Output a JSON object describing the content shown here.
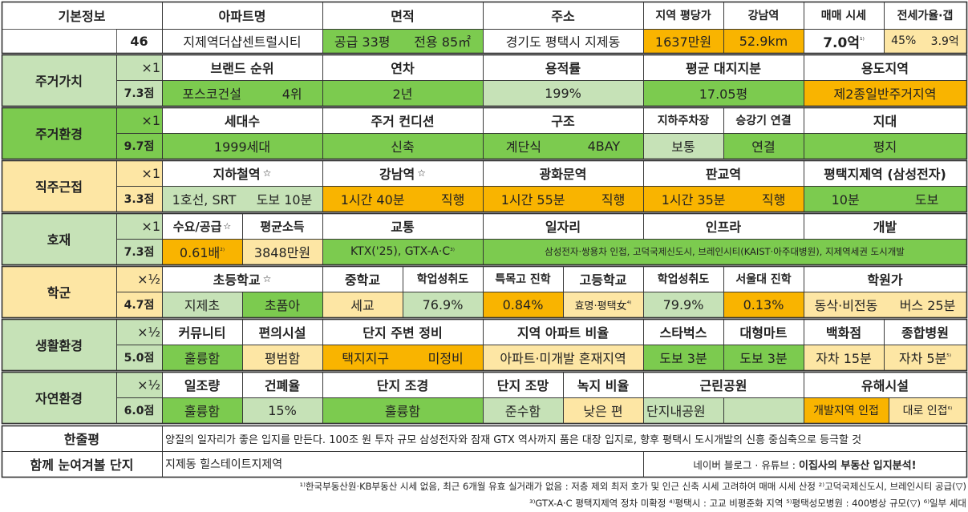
{
  "basic": {
    "label": "기본정보",
    "number": "46",
    "headers": {
      "apt": "아파트명",
      "area": "면적",
      "addr": "주소",
      "price_pp": "지역 평당가",
      "gangnam": "강남역",
      "sale": "매매 시세",
      "jeonse": "전세가율·갭"
    },
    "values": {
      "apt": "지제역더샵센트럴시티",
      "area_a": "공급 33평",
      "area_b": "전용 85㎡",
      "addr": "경기도 평택시 지제동",
      "price_pp": "1637만원",
      "gangnam": "52.9km",
      "sale": "7.0억",
      "sale_sup": "¹⁾",
      "jeonse_a": "45%",
      "jeonse_b": "3.9억"
    }
  },
  "rows": {
    "r1": {
      "label": "주거가치",
      "mult": "×1",
      "score": "7.3점",
      "h": {
        "brand": "브랜드 순위",
        "age": "연차",
        "far": "용적률",
        "land": "평균 대지지분",
        "zone": "용도지역"
      },
      "v": {
        "brand_a": "포스코건설",
        "brand_b": "4위",
        "age": "2년",
        "far": "199%",
        "land": "17.05평",
        "zone": "제2종일반주거지역"
      }
    },
    "r2": {
      "label": "주거환경",
      "mult": "×1",
      "score": "9.7점",
      "h": {
        "units": "세대수",
        "cond": "주거 컨디션",
        "struct": "구조",
        "park": "지하주차장",
        "elev": "승강기 연결",
        "terrain": "지대"
      },
      "v": {
        "units": "1999세대",
        "cond": "신축",
        "struct_a": "계단식",
        "struct_b": "4BAY",
        "park": "보통",
        "elev": "연결",
        "terrain": "평지"
      }
    },
    "r3": {
      "label": "직주근접",
      "mult": "×1",
      "score": "3.3점",
      "h": {
        "subway": "지하철역",
        "star": "☆",
        "gn": "강남역",
        "gh": "광화문역",
        "pg": "판교역",
        "pt": "평택지제역 (삼성전자)"
      },
      "v": {
        "sub_a": "1호선, SRT",
        "sub_b": "도보 10분",
        "gn_a": "1시간 40분",
        "gn_b": "직행",
        "gh_a": "1시간 55분",
        "gh_b": "직행",
        "pg_a": "1시간 35분",
        "pg_b": "직행",
        "pt_a": "10분",
        "pt_b": "도보"
      }
    },
    "r4": {
      "label": "호재",
      "mult": "×1",
      "score": "7.3점",
      "h": {
        "supply": "수요/공급",
        "income": "평균소득",
        "traffic": "교통",
        "jobs": "일자리",
        "infra": "인프라",
        "dev": "개발"
      },
      "v": {
        "supply": "0.61배",
        "supply_sup": "²⁾",
        "income": "3848만원",
        "traffic": "KTX('25), GTX-A·C",
        "traffic_sup": "³⁾",
        "rest": "삼성전자·쌍용차 인접, 고덕국제신도시, 브레인시티(KAIST·아주대병원), 지제역세권 도시개발"
      }
    },
    "r5": {
      "label": "학군",
      "mult": "×½",
      "score": "4.7점",
      "h": {
        "elem": "초등학교",
        "mid": "중학교",
        "mid_ach": "학업성취도",
        "special": "특목고 진학",
        "high": "고등학교",
        "high_ach": "학업성취도",
        "snu": "서울대 진학",
        "academy": "학원가"
      },
      "v": {
        "elem_a": "지제초",
        "elem_b": "초품아",
        "mid": "세교",
        "mid_ach": "76.9%",
        "special": "0.84%",
        "high": "효명·평택女",
        "high_sup": "⁴⁾",
        "high_ach": "79.9%",
        "snu": "0.13%",
        "ac_a": "동삭·비전동",
        "ac_b": "버스 25분"
      }
    },
    "r6": {
      "label": "생활환경",
      "mult": "×½",
      "score": "5.0점",
      "h": {
        "comm": "커뮤니티",
        "conv": "편의시설",
        "surround": "단지 주변 정비",
        "ratio": "지역 아파트 비율",
        "starbucks": "스타벅스",
        "mart": "대형마트",
        "dept": "백화점",
        "hosp": "종합병원"
      },
      "v": {
        "comm": "훌륭함",
        "conv": "평범함",
        "sur_a": "택지지구",
        "sur_b": "미정비",
        "ratio": "아파트·미개발 혼재지역",
        "starbucks": "도보 3분",
        "mart": "도보 3분",
        "dept": "자차 15분",
        "hosp": "자차 5분",
        "hosp_sup": "⁵⁾"
      }
    },
    "r7": {
      "label": "자연환경",
      "mult": "×½",
      "score": "6.0점",
      "h": {
        "sun": "일조량",
        "bcr": "건폐율",
        "land": "단지 조경",
        "view": "단지 조망",
        "green": "녹지 비율",
        "park": "근린공원",
        "harm": "유해시설"
      },
      "v": {
        "sun": "훌륭함",
        "bcr": "15%",
        "land": "훌륭함",
        "view": "준수함",
        "green": "낮은 편",
        "park": "단지내공원",
        "harm_a": "개발지역 인접",
        "harm_b": "대로 인접",
        "harm_sup": "⁶⁾"
      }
    }
  },
  "summary": {
    "label": "한줄평",
    "text": "양질의 일자리가 좋은 입지를 만든다. 100조 원 투자 규모 삼성전자와 잠재 GTX 역사까지 품은 대장 입지로, 향후 평택시 도시개발의 신흥 중심축으로 등극할 것"
  },
  "compare": {
    "label": "함께 눈여겨볼 단지",
    "text": "지제동 힐스테이트지제역",
    "credit_a": "네이버 블로그 · 유튜브 :",
    "credit_b": "이집사의 부동산 입지분석!"
  },
  "footnotes": {
    "line1": "¹⁾한국부동산원·KB부동산 시세 없음, 최근 6개월 유효 실거래가 없음 : 저층 제외 최저 호가 및 인근 신축 시세 고려하여 매매 시세 산정 ²⁾고덕국제신도시, 브레인시티 공급(▽)",
    "line2": "³⁾GTX-A·C 평택지제역 정차 미확정 ⁴⁾평택시 : 고교 비평준화 지역 ⁵⁾평택성모병원 : 400병상 규모(▽) ⁶⁾일부 세대"
  },
  "colors": {
    "green": "#7ccb4f",
    "light_green": "#c6e2b7",
    "orange": "#f9b400",
    "yellow": "#fde6a4"
  }
}
